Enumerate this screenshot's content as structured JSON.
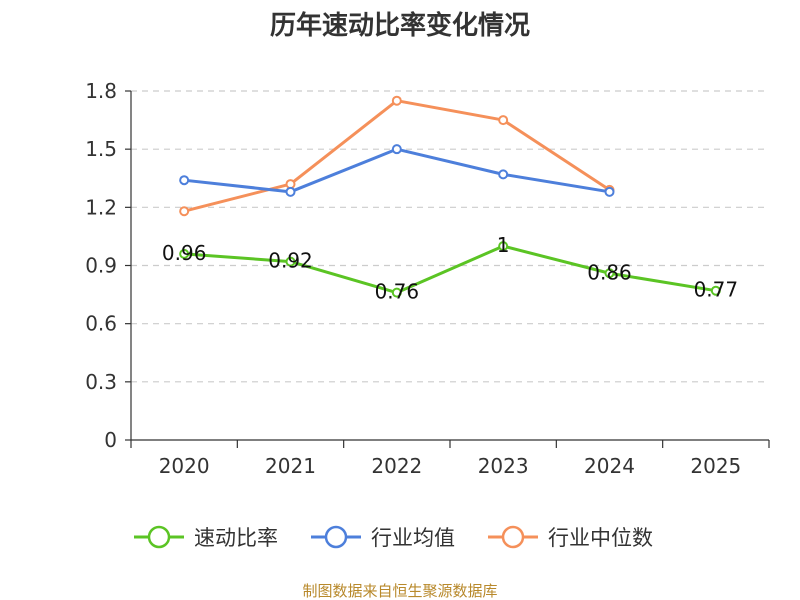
{
  "chart_data": {
    "type": "line",
    "title": "历年速动比率变化情况",
    "xlabel": "",
    "ylabel": "",
    "categories": [
      "2020",
      "2021",
      "2022",
      "2023",
      "2024",
      "2025"
    ],
    "ylim": [
      0,
      1.8
    ],
    "yticks": [
      "0",
      "0.3",
      "0.6",
      "0.9",
      "1.2",
      "1.5",
      "1.8"
    ],
    "grid": true,
    "legend_position": "bottom",
    "series": [
      {
        "name": "速动比率",
        "color": "#5bc424",
        "values": [
          0.96,
          0.92,
          0.76,
          1.0,
          0.86,
          0.77
        ],
        "labels": [
          "0.96",
          "0.92",
          "0.76",
          "1",
          "0.86",
          "0.77"
        ]
      },
      {
        "name": "行业均值",
        "color": "#4d7fdb",
        "values": [
          1.34,
          1.28,
          1.5,
          1.37,
          1.28,
          null
        ]
      },
      {
        "name": "行业中位数",
        "color": "#f5905a",
        "values": [
          1.18,
          1.32,
          1.75,
          1.65,
          1.29,
          null
        ]
      }
    ]
  },
  "source_text": "制图数据来自恒生聚源数据库"
}
